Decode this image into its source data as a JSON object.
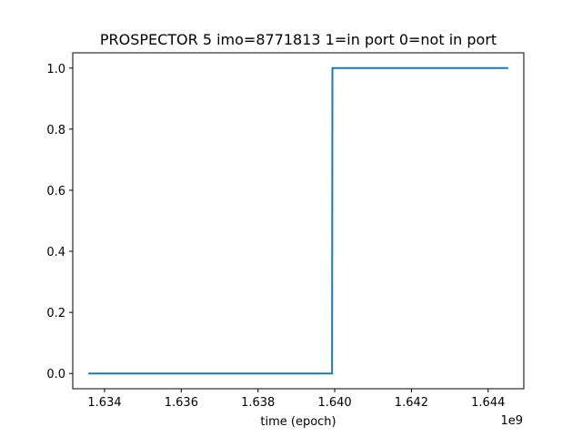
{
  "chart_data": {
    "type": "line",
    "title": "PROSPECTOR 5 imo=8771813 1=in port 0=not in port",
    "xlabel": "time (epoch)",
    "ylabel": "",
    "x_offset_label": "1e9",
    "x_tick_values": [
      1.634,
      1.636,
      1.638,
      1.64,
      1.642,
      1.644
    ],
    "x_tick_labels": [
      "1.634",
      "1.636",
      "1.638",
      "1.640",
      "1.642",
      "1.644"
    ],
    "y_tick_values": [
      0.0,
      0.2,
      0.4,
      0.6,
      0.8,
      1.0
    ],
    "y_tick_labels": [
      "0.0",
      "0.2",
      "0.4",
      "0.6",
      "0.8",
      "1.0"
    ],
    "xlim": [
      1.63317,
      1.64493
    ],
    "ylim": [
      -0.05,
      1.05
    ],
    "grid": false,
    "series": [
      {
        "color": "#1f77b4",
        "x": [
          1.6336,
          1.63993,
          1.63994,
          1.6445
        ],
        "y": [
          0,
          0,
          1,
          1
        ]
      }
    ]
  }
}
